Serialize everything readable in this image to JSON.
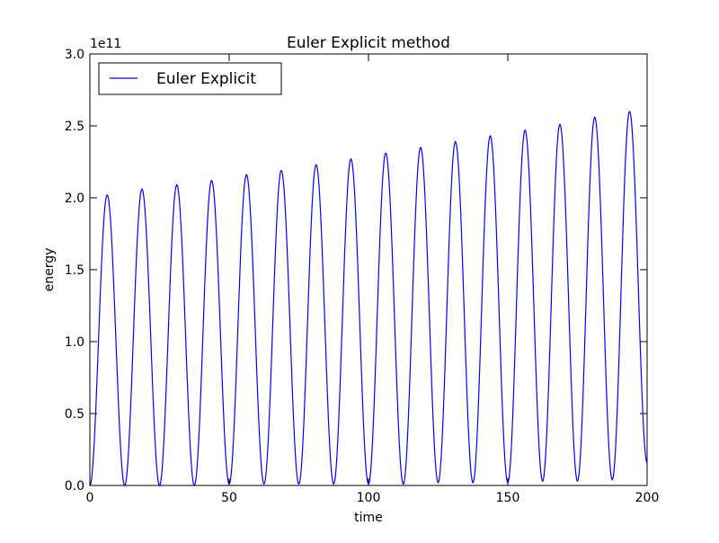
{
  "chart_data": {
    "type": "line",
    "title": "Euler Explicit method",
    "xlabel": "time",
    "ylabel": "energy",
    "y_offset_label": "1e11",
    "y_multiplier": 100000000000.0,
    "xlim": [
      0,
      200
    ],
    "ylim": [
      0.0,
      3.0
    ],
    "x_ticks": [
      0,
      50,
      100,
      150,
      200
    ],
    "x_tick_labels": [
      "0",
      "50",
      "100",
      "150",
      "200"
    ],
    "y_ticks": [
      0.0,
      0.5,
      1.0,
      1.5,
      2.0,
      2.5,
      3.0
    ],
    "y_tick_labels": [
      "0.0",
      "0.5",
      "1.0",
      "1.5",
      "2.0",
      "2.5",
      "3.0"
    ],
    "grid": false,
    "legend": {
      "position": "top-left",
      "entries": [
        "Euler Explicit"
      ]
    },
    "series": [
      {
        "name": "Euler Explicit",
        "color": "#0000ff",
        "description_points": {
          "peaks_x": [
            6.2,
            18.7,
            31.2,
            43.7,
            56.2,
            68.7,
            81.2,
            93.7,
            106.2,
            118.7,
            131.2,
            143.7,
            156.2,
            168.7,
            181.2,
            193.7
          ],
          "peaks_y": [
            2.02,
            2.06,
            2.09,
            2.12,
            2.16,
            2.19,
            2.23,
            2.27,
            2.31,
            2.35,
            2.39,
            2.43,
            2.47,
            2.51,
            2.56,
            2.6
          ],
          "troughs_x": [
            0.0,
            12.5,
            25.0,
            37.5,
            50.0,
            62.5,
            75.0,
            87.5,
            100.0,
            112.5,
            125.0,
            137.5,
            150.0,
            162.5,
            175.0,
            187.5
          ],
          "troughs_y": [
            0.0,
            0.0,
            0.0,
            0.0,
            0.01,
            0.01,
            0.01,
            0.01,
            0.01,
            0.01,
            0.02,
            0.02,
            0.02,
            0.03,
            0.03,
            0.04
          ],
          "end_point": [
            200,
            0.16
          ]
        }
      }
    ]
  }
}
